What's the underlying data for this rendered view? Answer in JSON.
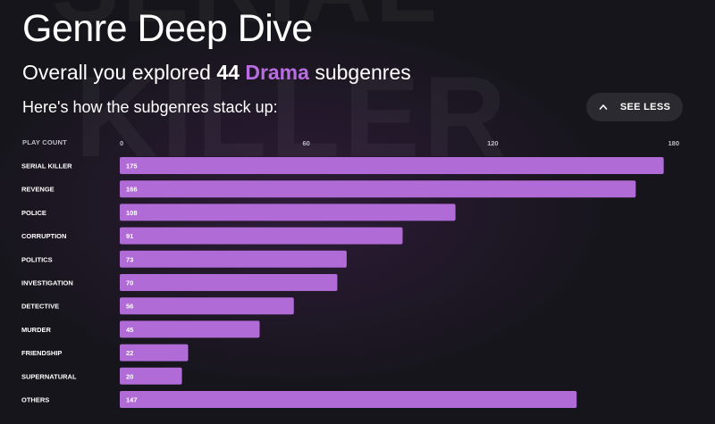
{
  "watermark": {
    "line1": "SERIAL",
    "line2": "KILLER"
  },
  "header": {
    "title": "Genre Deep Dive",
    "subtitle_prefix": "Overall you explored ",
    "subtitle_count": "44",
    "subtitle_genre": "Drama",
    "subtitle_suffix": " subgenres",
    "stack_line": "Here's how the subgenres stack up:"
  },
  "toggle": {
    "label": "SEE LESS",
    "icon": "chevron-up-icon"
  },
  "colors": {
    "accent": "#b86ee0",
    "bar": "#b06bd6",
    "background": "#16151b"
  },
  "chart_data": {
    "type": "bar",
    "orientation": "horizontal",
    "title": "",
    "ylabel": "PLAY COUNT",
    "xlabel": "",
    "xlim": [
      0,
      180
    ],
    "ticks": [
      0,
      60,
      120,
      180
    ],
    "categories": [
      "SERIAL KILLER",
      "REVENGE",
      "POLICE",
      "CORRUPTION",
      "POLITICS",
      "INVESTIGATION",
      "DETECTIVE",
      "MURDER",
      "FRIENDSHIP",
      "SUPERNATURAL",
      "OTHERS"
    ],
    "values": [
      175,
      166,
      108,
      91,
      73,
      70,
      56,
      45,
      22,
      20,
      147
    ]
  }
}
